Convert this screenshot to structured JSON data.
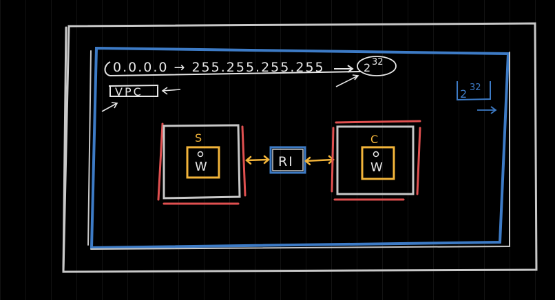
{
  "colors": {
    "outline_gray": "#c8c8c8",
    "blue": "#3d7bc6",
    "red": "#e05050",
    "orange": "#f2b43a",
    "white": "#e6e6e6"
  },
  "vpc": {
    "range_text": "0.0.0.0 → 255.255.255.255",
    "count_base": "2",
    "count_exp": "32",
    "label": "VPC"
  },
  "corner_count": {
    "base": "2",
    "exp": "32"
  },
  "left_box": {
    "top_letter": "S",
    "inner_letter": "W"
  },
  "router": {
    "label": "RI"
  },
  "right_box": {
    "top_letter": "C",
    "inner_letter": "W"
  }
}
